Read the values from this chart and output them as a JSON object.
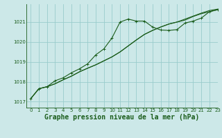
{
  "title": "Graphe pression niveau de la mer (hPa)",
  "background_color": "#cce8e8",
  "grid_color": "#99cccc",
  "line_color": "#1a5c1a",
  "xlim": [
    -0.5,
    23
  ],
  "ylim": [
    1016.7,
    1021.9
  ],
  "yticks": [
    1017,
    1018,
    1019,
    1020,
    1021
  ],
  "xticks": [
    0,
    1,
    2,
    3,
    4,
    5,
    6,
    7,
    8,
    9,
    10,
    11,
    12,
    13,
    14,
    15,
    16,
    17,
    18,
    19,
    20,
    21,
    22,
    23
  ],
  "series": [
    [
      1017.15,
      1017.65,
      1017.75,
      1017.9,
      1018.1,
      1018.28,
      1018.5,
      1018.68,
      1018.85,
      1019.05,
      1019.25,
      1019.5,
      1019.8,
      1020.1,
      1020.38,
      1020.58,
      1020.75,
      1020.9,
      1021.0,
      1021.1,
      1021.28,
      1021.42,
      1021.52,
      1021.62
    ],
    [
      1017.15,
      1017.65,
      1017.75,
      1017.9,
      1018.1,
      1018.28,
      1018.5,
      1018.68,
      1018.85,
      1019.05,
      1019.25,
      1019.5,
      1019.8,
      1020.1,
      1020.38,
      1020.58,
      1020.75,
      1020.9,
      1021.0,
      1021.15,
      1021.3,
      1021.45,
      1021.58,
      1021.65
    ],
    [
      1017.15,
      1017.65,
      1017.75,
      1018.05,
      1018.2,
      1018.45,
      1018.65,
      1018.9,
      1019.35,
      1019.65,
      1020.2,
      1021.0,
      1021.15,
      1021.05,
      1021.05,
      1020.75,
      1020.6,
      1020.58,
      1020.62,
      1020.95,
      1021.05,
      1021.2,
      1021.52,
      1021.62
    ]
  ],
  "title_fontsize": 7,
  "tick_fontsize": 5
}
